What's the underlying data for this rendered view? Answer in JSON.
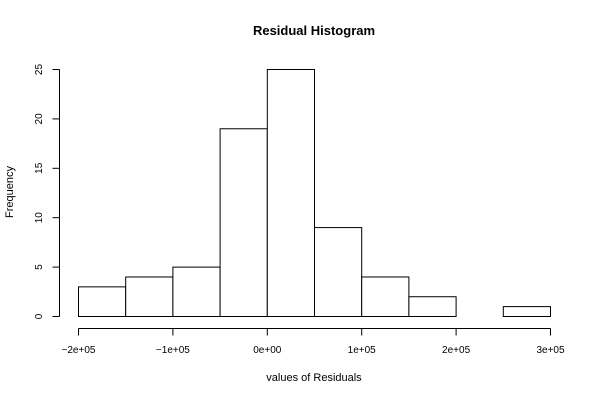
{
  "chart_data": {
    "type": "bar",
    "title": "Residual Histogram",
    "xlabel": "values of Residuals",
    "ylabel": "Frequency",
    "bins": [
      {
        "start": -200000,
        "end": -150000,
        "count": 3
      },
      {
        "start": -150000,
        "end": -100000,
        "count": 4
      },
      {
        "start": -100000,
        "end": -50000,
        "count": 5
      },
      {
        "start": -50000,
        "end": 0,
        "count": 19
      },
      {
        "start": 0,
        "end": 50000,
        "count": 25
      },
      {
        "start": 50000,
        "end": 100000,
        "count": 9
      },
      {
        "start": 100000,
        "end": 150000,
        "count": 4
      },
      {
        "start": 150000,
        "end": 200000,
        "count": 2
      },
      {
        "start": 200000,
        "end": 250000,
        "count": 0
      },
      {
        "start": 250000,
        "end": 300000,
        "count": 1
      }
    ],
    "xlim": [
      -200000,
      300000
    ],
    "ylim": [
      0,
      25
    ],
    "x_ticks": [
      {
        "value": -200000,
        "label": "−2e+05"
      },
      {
        "value": -100000,
        "label": "−1e+05"
      },
      {
        "value": 0,
        "label": "0e+00"
      },
      {
        "value": 100000,
        "label": "1e+05"
      },
      {
        "value": 200000,
        "label": "2e+05"
      },
      {
        "value": 300000,
        "label": "3e+05"
      }
    ],
    "y_ticks": [
      {
        "value": 0,
        "label": "0"
      },
      {
        "value": 5,
        "label": "5"
      },
      {
        "value": 10,
        "label": "10"
      },
      {
        "value": 15,
        "label": "15"
      },
      {
        "value": 20,
        "label": "20"
      },
      {
        "value": 25,
        "label": "25"
      }
    ],
    "grid": false,
    "colors": {
      "bar_fill": "#ffffff",
      "bar_stroke": "#000000",
      "background": "#ffffff"
    }
  }
}
